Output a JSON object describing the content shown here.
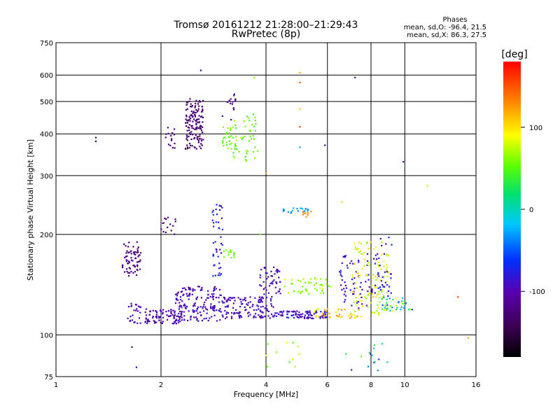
{
  "chart_data": {
    "type": "scatter",
    "title": "Tromsø 20161212 21:28:00–21:29:43",
    "subtitle": "RwPretec (8p)",
    "xlabel": "Frequency [MHz]",
    "ylabel": "Stationary phase Virtual Height [km]",
    "x_scale": "log",
    "y_scale": "log",
    "xlim": [
      1,
      16
    ],
    "ylim": [
      75,
      750
    ],
    "x_ticks": [
      1,
      2,
      4,
      6,
      8,
      10,
      16
    ],
    "x_tick_labels": [
      "1",
      "2",
      "4",
      "6",
      "8",
      "10",
      "16"
    ],
    "y_ticks": [
      75,
      100,
      200,
      300,
      400,
      500,
      600,
      750
    ],
    "y_tick_labels": [
      "75",
      "100",
      "200",
      "300",
      "400",
      "500",
      "600",
      "750"
    ],
    "grid": true,
    "stats": {
      "heading": "Phases",
      "line_o": "mean, sd,O: -96.4, 21.5",
      "line_x": "mean, sd,X:  86.3, 27.5"
    },
    "colorbar": {
      "label": "[deg]",
      "range": [
        -180,
        180
      ],
      "ticks": [
        100,
        0,
        -100
      ],
      "tick_labels": [
        "100",
        "0",
        "-100"
      ],
      "colormap": "rainbow"
    },
    "clusters": [
      {
        "x": [
          1.55,
          1.75
        ],
        "y": [
          150,
          190
        ],
        "phase": [
          -135,
          -110
        ],
        "n": 70
      },
      {
        "x": [
          1.6,
          1.75
        ],
        "y": [
          108,
          125
        ],
        "phase": [
          -110,
          -80
        ],
        "n": 25
      },
      {
        "x": [
          1.8,
          2.3
        ],
        "y": [
          108,
          120
        ],
        "phase": [
          -120,
          -80
        ],
        "n": 90
      },
      {
        "x": [
          2.0,
          2.2
        ],
        "y": [
          200,
          225
        ],
        "phase": [
          -130,
          -110
        ],
        "n": 15
      },
      {
        "x": [
          2.05,
          2.2
        ],
        "y": [
          360,
          420
        ],
        "phase": [
          -135,
          -115
        ],
        "n": 15
      },
      {
        "x": [
          2.35,
          2.65
        ],
        "y": [
          360,
          510
        ],
        "phase": [
          -140,
          -115
        ],
        "n": 140
      },
      {
        "x": [
          2.2,
          3.0
        ],
        "y": [
          110,
          140
        ],
        "phase": [
          -115,
          -80
        ],
        "n": 160
      },
      {
        "x": [
          2.8,
          3.0
        ],
        "y": [
          150,
          250
        ],
        "phase": [
          -95,
          -55
        ],
        "n": 45
      },
      {
        "x": [
          3.0,
          3.25
        ],
        "y": [
          170,
          180
        ],
        "phase": [
          50,
          70
        ],
        "n": 15
      },
      {
        "x": [
          3.0,
          3.3
        ],
        "y": [
          360,
          420
        ],
        "phase": [
          40,
          70
        ],
        "n": 30
      },
      {
        "x": [
          3.2,
          3.8
        ],
        "y": [
          330,
          460
        ],
        "phase": [
          35,
          70
        ],
        "n": 45
      },
      {
        "x": [
          3.0,
          3.3
        ],
        "y": [
          440,
          540
        ],
        "phase": [
          -130,
          -110
        ],
        "n": 15
      },
      {
        "x": [
          3.0,
          4.2
        ],
        "y": [
          112,
          130
        ],
        "phase": [
          -115,
          -80
        ],
        "n": 130
      },
      {
        "x": [
          3.8,
          4.4
        ],
        "y": [
          130,
          160
        ],
        "phase": [
          -110,
          -80
        ],
        "n": 50
      },
      {
        "x": [
          4.4,
          5.3
        ],
        "y": [
          230,
          240
        ],
        "phase": [
          -40,
          -20
        ],
        "n": 20
      },
      {
        "x": [
          5.0,
          5.4
        ],
        "y": [
          225,
          235
        ],
        "phase": [
          120,
          150
        ],
        "n": 8
      },
      {
        "x": [
          4.2,
          6.0
        ],
        "y": [
          112,
          118
        ],
        "phase": [
          -110,
          -70
        ],
        "n": 90
      },
      {
        "x": [
          4.5,
          6.2
        ],
        "y": [
          132,
          148
        ],
        "phase": [
          40,
          90
        ],
        "n": 45
      },
      {
        "x": [
          5.5,
          7.5
        ],
        "y": [
          112,
          120
        ],
        "phase": [
          80,
          130
        ],
        "n": 40
      },
      {
        "x": [
          6.5,
          8.0
        ],
        "y": [
          120,
          175
        ],
        "phase": [
          -110,
          -70
        ],
        "n": 60
      },
      {
        "x": [
          7.0,
          9.0
        ],
        "y": [
          115,
          190
        ],
        "phase": [
          60,
          110
        ],
        "n": 110
      },
      {
        "x": [
          8.0,
          9.2
        ],
        "y": [
          130,
          200
        ],
        "phase": [
          -110,
          -60
        ],
        "n": 40
      },
      {
        "x": [
          8.5,
          10.5
        ],
        "y": [
          118,
          130
        ],
        "phase": [
          -60,
          110
        ],
        "n": 40
      },
      {
        "x": [
          4.0,
          5.0
        ],
        "y": [
          80,
          95
        ],
        "phase": [
          40,
          90
        ],
        "n": 12
      },
      {
        "x": [
          6.5,
          9.0
        ],
        "y": [
          78,
          95
        ],
        "phase": [
          -100,
          60
        ],
        "n": 15
      }
    ],
    "points": [
      {
        "x": 1.3,
        "y": 380,
        "phase": -125
      },
      {
        "x": 1.3,
        "y": 390,
        "phase": -125
      },
      {
        "x": 1.7,
        "y": 80,
        "phase": -110
      },
      {
        "x": 1.65,
        "y": 92,
        "phase": -120
      },
      {
        "x": 2.6,
        "y": 620,
        "phase": -130
      },
      {
        "x": 3.7,
        "y": 590,
        "phase": 60
      },
      {
        "x": 5.0,
        "y": 610,
        "phase": 120
      },
      {
        "x": 5.0,
        "y": 570,
        "phase": 150
      },
      {
        "x": 5.0,
        "y": 475,
        "phase": 110
      },
      {
        "x": 5.0,
        "y": 420,
        "phase": 160
      },
      {
        "x": 5.0,
        "y": 365,
        "phase": -30
      },
      {
        "x": 5.9,
        "y": 370,
        "phase": -110
      },
      {
        "x": 7.2,
        "y": 590,
        "phase": -110
      },
      {
        "x": 9.9,
        "y": 330,
        "phase": -100
      },
      {
        "x": 11.6,
        "y": 280,
        "phase": 70
      },
      {
        "x": 14.2,
        "y": 130,
        "phase": 150
      },
      {
        "x": 15.2,
        "y": 98,
        "phase": 120
      },
      {
        "x": 4.0,
        "y": 305,
        "phase": 130
      },
      {
        "x": 3.85,
        "y": 200,
        "phase": 60
      },
      {
        "x": 6.6,
        "y": 250,
        "phase": 110
      }
    ]
  }
}
